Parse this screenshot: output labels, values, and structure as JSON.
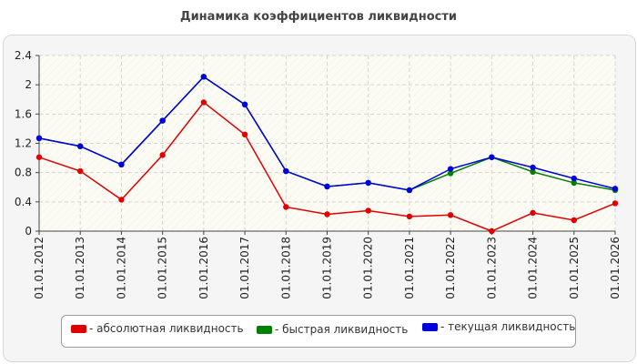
{
  "chart_data": {
    "type": "line",
    "title": "Динамика коэффициентов ликвидности",
    "xlabel": "",
    "ylabel": "",
    "ylim": [
      0,
      2.4
    ],
    "y_ticks": [
      "0",
      "0.4",
      "0.8",
      "1.2",
      "1.6",
      "2",
      "2.4"
    ],
    "grid": true,
    "legend_position": "bottom",
    "categories": [
      "01.01.2012",
      "01.01.2013",
      "01.01.2014",
      "01.01.2015",
      "01.01.2016",
      "01.01.2017",
      "01.01.2018",
      "01.01.2019",
      "01.01.2020",
      "01.01.2021",
      "01.01.2022",
      "01.01.2023",
      "01.01.2024",
      "01.01.2025",
      "01.01.2026"
    ],
    "series": [
      {
        "name": "- абсолютная ликвидность",
        "color": "#e00000",
        "values": [
          1.01,
          0.82,
          0.43,
          1.04,
          1.76,
          1.32,
          0.33,
          0.23,
          0.28,
          0.2,
          0.22,
          0.0,
          0.25,
          0.15,
          0.38
        ]
      },
      {
        "name": "- быстрая ликвидность",
        "color": "#008000",
        "values": [
          1.27,
          1.16,
          0.91,
          1.51,
          2.11,
          1.73,
          0.82,
          0.61,
          0.66,
          0.56,
          0.79,
          1.01,
          0.81,
          0.66,
          0.56
        ]
      },
      {
        "name": "- текущая ликвидность",
        "color": "#0000e0",
        "values": [
          1.27,
          1.16,
          0.91,
          1.51,
          2.11,
          1.73,
          0.82,
          0.61,
          0.66,
          0.56,
          0.85,
          1.01,
          0.87,
          0.72,
          0.58
        ]
      }
    ]
  }
}
